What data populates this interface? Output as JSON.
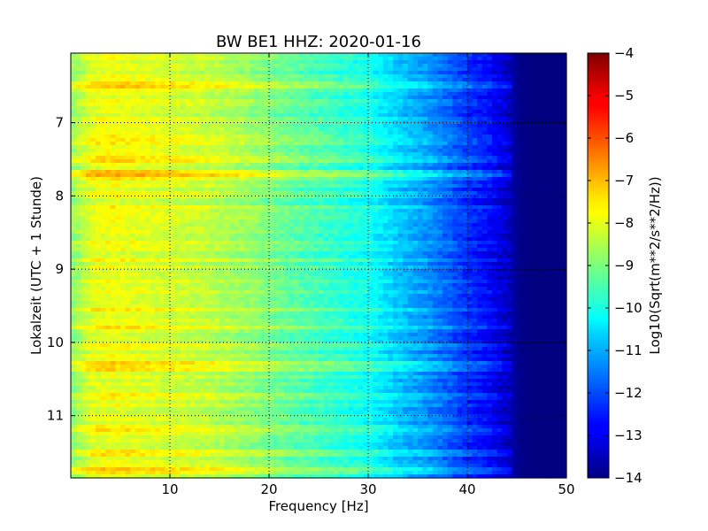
{
  "chart_data": {
    "type": "heatmap",
    "title": "BW BE1 HHZ: 2020-01-16",
    "xlabel": "Frequency [Hz]",
    "ylabel": "Lokalzeit (UTC + 1 Stunde)",
    "colorbar_label": "Log10(Sqrt(m**2/s**2/Hz))",
    "colormap": "jet",
    "xlim": [
      0,
      50
    ],
    "ylim": [
      6.05,
      11.85
    ],
    "y_inverted": true,
    "x_ticks": [
      10,
      20,
      30,
      40,
      50
    ],
    "x_tick_labels": [
      "10",
      "20",
      "30",
      "40",
      "50"
    ],
    "y_ticks": [
      7,
      8,
      9,
      10,
      11
    ],
    "y_tick_labels": [
      "7",
      "8",
      "9",
      "10",
      "11"
    ],
    "colorbar_range": [
      -14,
      -4
    ],
    "colorbar_ticks": [
      -4,
      -5,
      -6,
      -7,
      -8,
      -9,
      -10,
      -11,
      -12,
      -13,
      -14
    ],
    "colorbar_tick_labels": [
      "−4",
      "−5",
      "−6",
      "−7",
      "−8",
      "−9",
      "−10",
      "−11",
      "−12",
      "−13",
      "−14"
    ],
    "grid": true,
    "grid_style": "dotted",
    "frequency_profile": {
      "frequency_hz": [
        0,
        1,
        2,
        4,
        6,
        10,
        14,
        18,
        22,
        26,
        29,
        31,
        33,
        36,
        38,
        40,
        42,
        44,
        45,
        46,
        50
      ],
      "log10_amplitude": [
        -8.9,
        -8.5,
        -8.1,
        -7.9,
        -8.0,
        -8.2,
        -8.4,
        -8.8,
        -9.3,
        -9.7,
        -10.0,
        -10.3,
        -10.8,
        -11.3,
        -11.8,
        -12.3,
        -12.7,
        -13.3,
        -13.8,
        -14.0,
        -14.0
      ]
    },
    "bands": [
      {
        "time": 6.5,
        "delta": 0.65
      },
      {
        "time": 6.72,
        "delta": 0.35
      },
      {
        "time": 7.22,
        "delta": 0.5
      },
      {
        "time": 7.32,
        "delta": 0.3
      },
      {
        "time": 7.49,
        "delta": 0.45
      },
      {
        "time": 7.68,
        "delta": 0.75
      },
      {
        "time": 7.75,
        "delta": 0.4
      },
      {
        "time": 8.15,
        "delta": 0.3
      },
      {
        "time": 8.88,
        "delta": 0.35
      },
      {
        "time": 9.55,
        "delta": 0.45
      },
      {
        "time": 9.8,
        "delta": 0.4
      },
      {
        "time": 10.05,
        "delta": 0.35
      },
      {
        "time": 10.28,
        "delta": 0.55
      },
      {
        "time": 10.36,
        "delta": 0.45
      },
      {
        "time": 10.75,
        "delta": 0.5
      },
      {
        "time": 11.18,
        "delta": 0.35
      },
      {
        "time": 11.5,
        "delta": 0.6
      },
      {
        "time": 11.75,
        "delta": 0.7
      }
    ]
  }
}
